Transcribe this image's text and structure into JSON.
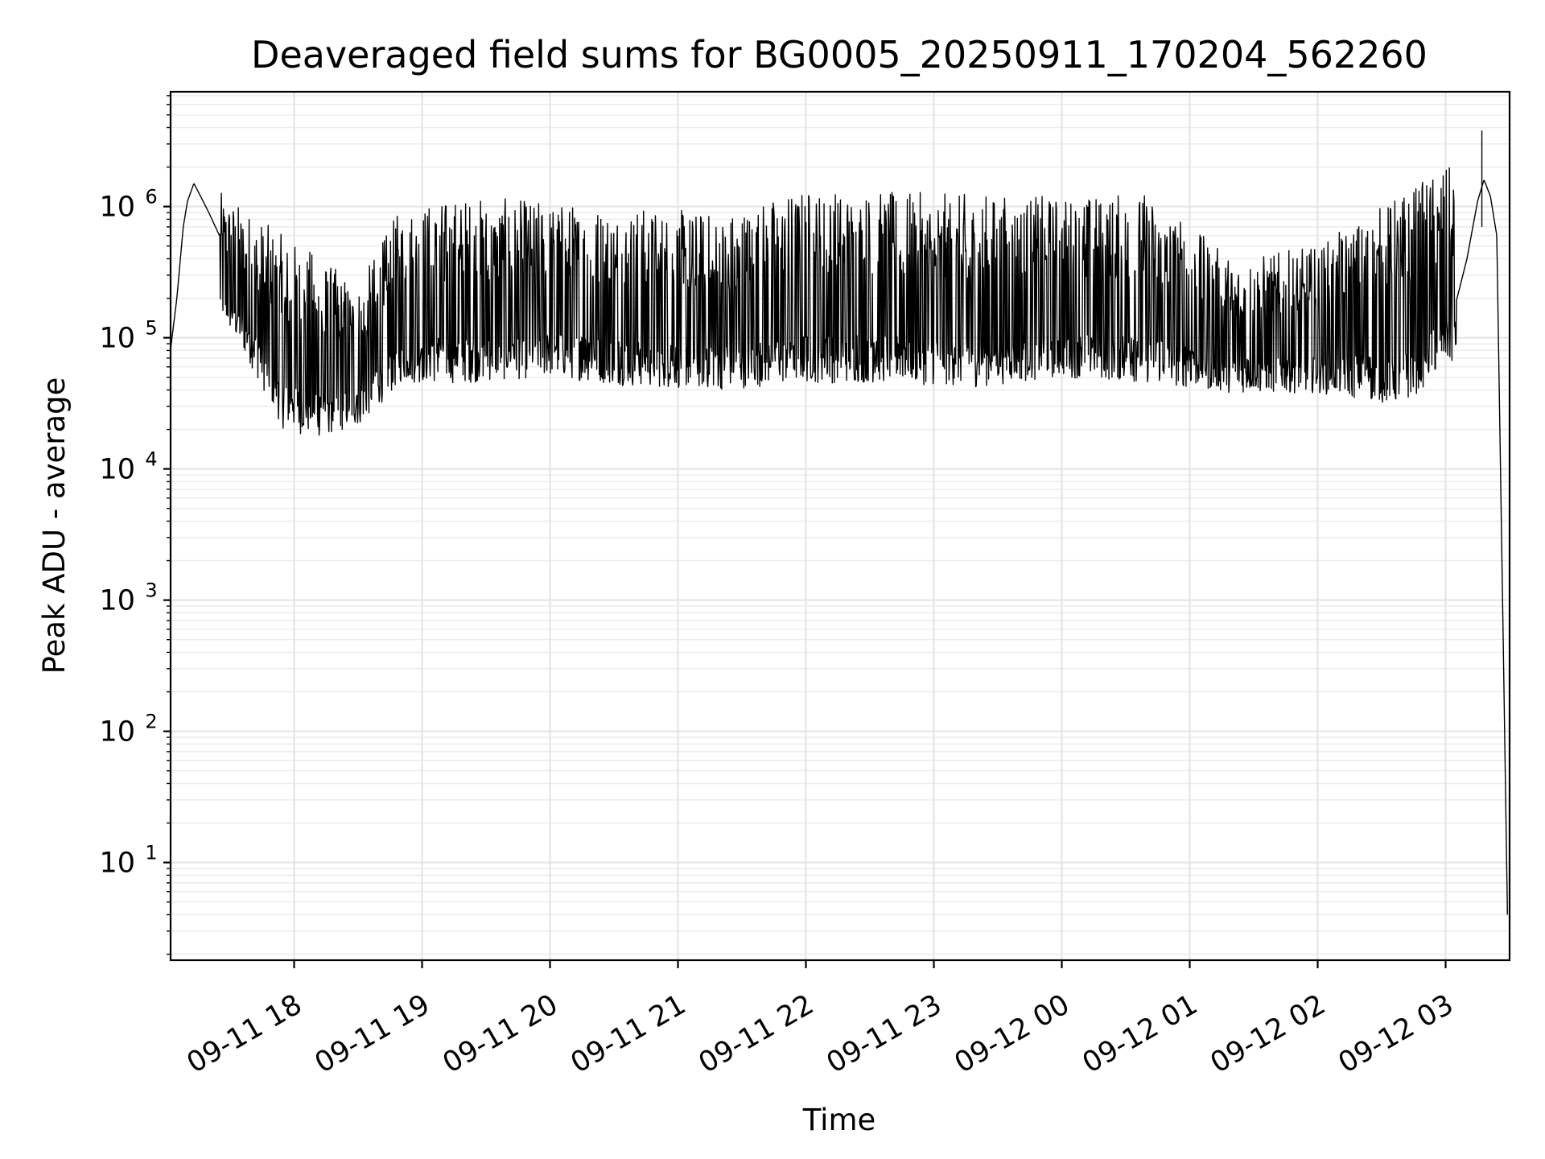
{
  "chart_data": {
    "type": "line",
    "title": "Deaveraged field sums for BG0005_20250911_170204_562260",
    "xlabel": "Time",
    "ylabel": "Peak ADU - average",
    "yscale": "log",
    "ylim": [
      1.8,
      7500000
    ],
    "xlim": [
      "2025-09-11 17:02:04",
      "2025-09-12 03:30:00"
    ],
    "grid": true,
    "grid_minor": true,
    "legend": "none",
    "line_color": "#000000",
    "x_ticks": [
      "2025-09-11 18:00",
      "2025-09-11 19:00",
      "2025-09-11 20:00",
      "2025-09-11 21:00",
      "2025-09-11 22:00",
      "2025-09-11 23:00",
      "2025-09-12 00:00",
      "2025-09-12 01:00",
      "2025-09-12 02:00",
      "2025-09-12 03:00"
    ],
    "x_tick_labels": [
      "09-11 18",
      "09-11 19",
      "09-11 20",
      "09-11 21",
      "09-11 22",
      "09-11 23",
      "09-12 00",
      "09-12 01",
      "09-12 02",
      "09-12 03"
    ],
    "y_ticks": [
      10,
      100,
      1000,
      10000,
      100000,
      1000000
    ],
    "y_tick_labels": [
      {
        "base": "10",
        "exp": "1"
      },
      {
        "base": "10",
        "exp": "2"
      },
      {
        "base": "10",
        "exp": "3"
      },
      {
        "base": "10",
        "exp": "4"
      },
      {
        "base": "10",
        "exp": "5"
      },
      {
        "base": "10",
        "exp": "6"
      }
    ],
    "series": [
      {
        "x": [
          "2025-09-11 17:02",
          "2025-09-11 17:05",
          "2025-09-11 17:08",
          "2025-09-11 17:10",
          "2025-09-11 17:13",
          "2025-09-11 17:15",
          "2025-09-11 17:20",
          "2025-09-11 17:25",
          "2025-09-11 17:30",
          "2025-09-11 17:35",
          "2025-09-11 17:40",
          "2025-09-11 17:45",
          "2025-09-11 17:50",
          "2025-09-11 17:55",
          "2025-09-11 18:00",
          "2025-09-11 18:10",
          "2025-09-11 18:20",
          "2025-09-11 18:30",
          "2025-09-11 18:40",
          "2025-09-11 18:50",
          "2025-09-11 19:00",
          "2025-09-11 19:20",
          "2025-09-11 19:40",
          "2025-09-11 20:00",
          "2025-09-11 20:20",
          "2025-09-11 20:40",
          "2025-09-11 21:00",
          "2025-09-11 21:20",
          "2025-09-11 21:40",
          "2025-09-11 22:00",
          "2025-09-11 22:20",
          "2025-09-11 22:40",
          "2025-09-11 23:00",
          "2025-09-11 23:20",
          "2025-09-11 23:40",
          "2025-09-12 00:00",
          "2025-09-12 00:20",
          "2025-09-12 00:40",
          "2025-09-12 01:00",
          "2025-09-12 01:20",
          "2025-09-12 01:40",
          "2025-09-12 02:00",
          "2025-09-12 02:20",
          "2025-09-12 02:40",
          "2025-09-12 02:50",
          "2025-09-12 03:00",
          "2025-09-12 03:10",
          "2025-09-12 03:15",
          "2025-09-12 03:18",
          "2025-09-12 03:21",
          "2025-09-12 03:24",
          "2025-09-12 03:27",
          "2025-09-12 03:29"
        ],
        "y": [
          80000,
          200000,
          700000,
          1100000,
          1500000,
          1300000,
          900000,
          600000,
          350000,
          200000,
          120000,
          80000,
          60000,
          45000,
          40000,
          35000,
          32000,
          35000,
          45000,
          90000,
          130000,
          250000,
          200000,
          150000,
          120000,
          130000,
          140000,
          100000,
          90000,
          150000,
          200000,
          90000,
          250000,
          400000,
          500000,
          450000,
          350000,
          200000,
          110000,
          80000,
          70000,
          65000,
          55000,
          50000,
          60000,
          90000,
          400000,
          1100000,
          1600000,
          1200000,
          600000,
          500,
          4
        ]
      }
    ],
    "range_low": [
      {
        "x": [
          "2025-09-11 17:25",
          "2025-09-11 17:40",
          "2025-09-11 17:55",
          "2025-09-11 18:10",
          "2025-09-11 18:30",
          "2025-09-11 18:50",
          "2025-09-11 19:20",
          "2025-09-11 20:00",
          "2025-09-11 20:40",
          "2025-09-11 21:20",
          "2025-09-11 22:00",
          "2025-09-11 22:40",
          "2025-09-11 23:20",
          "2025-09-12 00:00",
          "2025-09-12 00:40",
          "2025-09-12 01:20",
          "2025-09-12 02:00",
          "2025-09-12 02:40",
          "2025-09-12 03:00"
        ],
        "y": [
          150000,
          60000,
          20000,
          17000,
          21000,
          45000,
          45000,
          50000,
          42000,
          40000,
          45000,
          45000,
          42000,
          50000,
          45000,
          38000,
          38000,
          30000,
          60000
        ]
      }
    ],
    "range_high": [
      {
        "x": [
          "2025-09-11 17:25",
          "2025-09-11 17:40",
          "2025-09-11 17:55",
          "2025-09-11 18:10",
          "2025-09-11 18:30",
          "2025-09-11 18:50",
          "2025-09-11 19:20",
          "2025-09-11 20:00",
          "2025-09-11 20:40",
          "2025-09-11 21:20",
          "2025-09-11 22:00",
          "2025-09-11 22:40",
          "2025-09-11 23:20",
          "2025-09-12 00:00",
          "2025-09-12 00:40",
          "2025-09-12 01:20",
          "2025-09-12 02:00",
          "2025-09-12 02:40",
          "2025-09-12 03:00"
        ],
        "y": [
          1300000,
          900000,
          600000,
          450000,
          250000,
          1000000,
          1200000,
          1100000,
          1000000,
          900000,
          1400000,
          1300000,
          1250000,
          1200000,
          1300000,
          400000,
          500000,
          1300000,
          2000000
        ]
      }
    ],
    "annotations": [
      {
        "x": "2025-09-12 03:17",
        "y": 3800000,
        "text": ""
      }
    ]
  }
}
